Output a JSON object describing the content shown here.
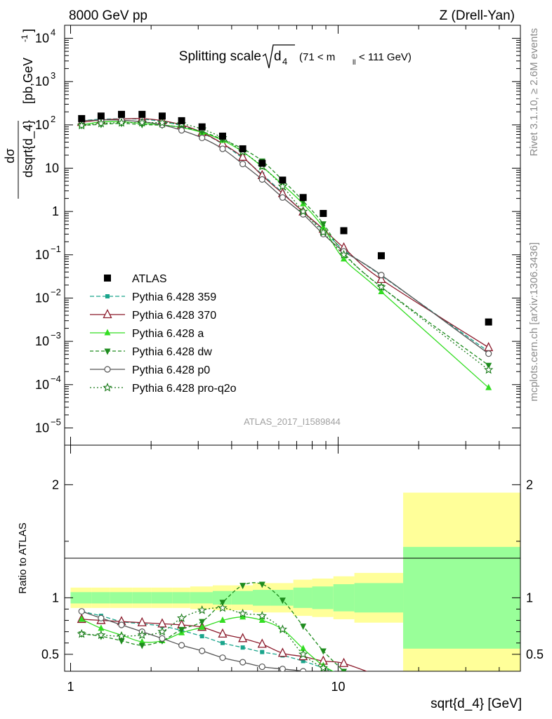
{
  "header": {
    "left": "8000 GeV pp",
    "right": "Z (Drell-Yan)"
  },
  "side": {
    "top": "Rivet 3.1.10, ≥ 2.6M events",
    "bottom": "mcplots.cern.ch [arXiv:1306.3436]"
  },
  "analysis_id": "ATLAS_2017_I1589844",
  "colors": {
    "ATLAS": "#000000",
    "p359": "#1aa58c",
    "p370": "#8b1a2b",
    "pa": "#33dd22",
    "pdw": "#1e8c1e",
    "pp0": "#555555",
    "pq2o": "#1a7a1a",
    "band_inner": "#99ff99",
    "band_outer": "#ffff99"
  },
  "chart_data": [
    {
      "type": "scatter",
      "title_main": "Splitting scale",
      "title_sym": "d",
      "title_sub": "4",
      "title_range_a": "(71 < m",
      "title_range_sub": "ll",
      "title_range_b": " < 111 GeV)",
      "ylabel_num": "dσ",
      "ylabel_den": "dsqrt{d_4}",
      "ylabel_unit": "[pb,GeV",
      "ylabel_exp": "-1",
      "ylabel_close": "]",
      "y_scale": "log",
      "x_scale": "log",
      "xlim": [
        0.95,
        48
      ],
      "ylim": [
        4e-06,
        20000
      ],
      "y_ticks": [
        {
          "v": 1e-05,
          "base": "10",
          "exp": "−5"
        },
        {
          "v": 0.0001,
          "base": "10",
          "exp": "−4"
        },
        {
          "v": 0.001,
          "base": "10",
          "exp": "−3"
        },
        {
          "v": 0.01,
          "base": "10",
          "exp": "−2"
        },
        {
          "v": 0.1,
          "base": "10",
          "exp": "−1"
        },
        {
          "v": 1,
          "base": "1",
          "exp": ""
        },
        {
          "v": 10,
          "base": "10",
          "exp": ""
        },
        {
          "v": 100,
          "base": "10",
          "exp": "2"
        },
        {
          "v": 1000,
          "base": "10",
          "exp": "3"
        },
        {
          "v": 10000,
          "base": "10",
          "exp": "4"
        }
      ],
      "x": [
        1.1,
        1.3,
        1.55,
        1.85,
        2.2,
        2.6,
        3.1,
        3.7,
        4.4,
        5.2,
        6.2,
        7.4,
        8.8,
        10.5,
        14.5,
        36.5
      ],
      "data": {
        "name": "ATLAS",
        "values": [
          140,
          160,
          175,
          175,
          160,
          125,
          90,
          55,
          28,
          13,
          5.3,
          2.1,
          0.9,
          0.36,
          0.095,
          0.0028
        ]
      },
      "series": [
        {
          "name": "Pythia 6.428 359",
          "key": "p359",
          "marker": "square",
          "dash": "6,3",
          "values": [
            125,
            135,
            138,
            135,
            120,
            95,
            65,
            36,
            17,
            7.2,
            2.7,
            0.98,
            0.37,
            0.13,
            0.033,
            0.00058
          ]
        },
        {
          "name": "Pythia 6.428 370",
          "key": "p370",
          "marker": "triangle-open",
          "dash": "",
          "values": [
            115,
            130,
            137,
            140,
            125,
            100,
            67,
            37,
            18,
            6.8,
            2.6,
            0.98,
            0.39,
            0.145,
            0.027,
            0.00072
          ]
        },
        {
          "name": "Pythia 6.428 a",
          "key": "pa",
          "marker": "triangle",
          "dash": "",
          "values": [
            100,
            117,
            118,
            108,
            100,
            87,
            67,
            44,
            24,
            10.8,
            4.2,
            1.5,
            0.43,
            0.08,
            0.014,
            8.5e-05
          ]
        },
        {
          "name": "Pythia 6.428 dw",
          "key": "pdw",
          "marker": "triangle-down",
          "dash": "5,3",
          "values": [
            97,
            103,
            108,
            102,
            98,
            88,
            70,
            46,
            28,
            14.7,
            5.3,
            1.75,
            0.52,
            0.11,
            0.018,
            0.00028
          ]
        },
        {
          "name": "Pythia 6.428 p0",
          "key": "pp0",
          "marker": "circle-open",
          "dash": "",
          "values": [
            125,
            130,
            128,
            118,
            100,
            75,
            50,
            28,
            12.5,
            5.5,
            2.1,
            0.86,
            0.3,
            0.12,
            0.034,
            0.00052
          ]
        },
        {
          "name": "Pythia 6.428 pro-q2o",
          "key": "pq2o",
          "marker": "star",
          "dash": "2,3",
          "values": [
            97,
            108,
            112,
            113,
            112,
            105,
            80,
            50,
            24,
            11,
            3.8,
            1.0,
            0.33,
            0.1,
            0.018,
            0.00022
          ]
        }
      ],
      "legend_position": "left-middle"
    },
    {
      "type": "line",
      "ylabel": "Ratio to ATLAS",
      "xlabel": "sqrt{d_4} [GeV]",
      "x_scale": "log",
      "ylim": [
        0.35,
        2.35
      ],
      "y_ticks": [
        {
          "v": 0.5,
          "label": "0.5"
        },
        {
          "v": 1,
          "label": "1"
        },
        {
          "v": 2,
          "label": "2"
        }
      ],
      "x_ticks": [
        {
          "v": 1,
          "label": "1"
        },
        {
          "v": 10,
          "label": "10"
        }
      ],
      "bin_edges": [
        1,
        1.2,
        1.4,
        1.7,
        2.0,
        2.4,
        2.8,
        3.4,
        4.0,
        4.8,
        5.6,
        6.8,
        8.0,
        9.6,
        11.5,
        17.5,
        48
      ],
      "band_inner_halfwidth": [
        0.05,
        0.05,
        0.05,
        0.05,
        0.05,
        0.05,
        0.05,
        0.06,
        0.06,
        0.07,
        0.07,
        0.09,
        0.1,
        0.12,
        0.13,
        0.45
      ],
      "band_outer_halfwidth": [
        0.09,
        0.09,
        0.09,
        0.09,
        0.09,
        0.09,
        0.1,
        0.11,
        0.11,
        0.13,
        0.13,
        0.16,
        0.17,
        0.19,
        0.22,
        0.93
      ],
      "ratio_series": [
        {
          "key": "p359",
          "values": [
            0.88,
            0.84,
            0.79,
            0.77,
            0.75,
            0.71,
            0.66,
            0.6,
            0.56,
            0.52,
            0.49,
            0.44,
            0.38,
            0.32
          ]
        },
        {
          "key": "p370",
          "values": [
            0.81,
            0.8,
            0.79,
            0.78,
            0.77,
            0.76,
            0.74,
            0.68,
            0.64,
            0.59,
            0.51,
            0.48,
            0.44,
            0.42,
            0.3
          ]
        },
        {
          "key": "pa",
          "values": [
            0.81,
            0.73,
            0.67,
            0.61,
            0.62,
            0.69,
            0.74,
            0.8,
            0.83,
            0.8,
            0.72,
            0.55,
            0.4,
            0.3
          ]
        },
        {
          "key": "pdw",
          "values": [
            0.68,
            0.66,
            0.62,
            0.58,
            0.62,
            0.72,
            0.79,
            0.96,
            1.11,
            1.12,
            0.98,
            0.75,
            0.53,
            0.35
          ]
        },
        {
          "key": "pp0",
          "values": [
            0.88,
            0.82,
            0.76,
            0.7,
            0.64,
            0.58,
            0.53,
            0.47,
            0.43,
            0.39,
            0.37,
            0.35,
            0.3
          ]
        },
        {
          "key": "pq2o",
          "values": [
            0.68,
            0.67,
            0.66,
            0.67,
            0.7,
            0.82,
            0.89,
            0.91,
            0.86,
            0.84,
            0.72,
            0.5,
            0.38,
            0.3
          ]
        }
      ]
    }
  ]
}
